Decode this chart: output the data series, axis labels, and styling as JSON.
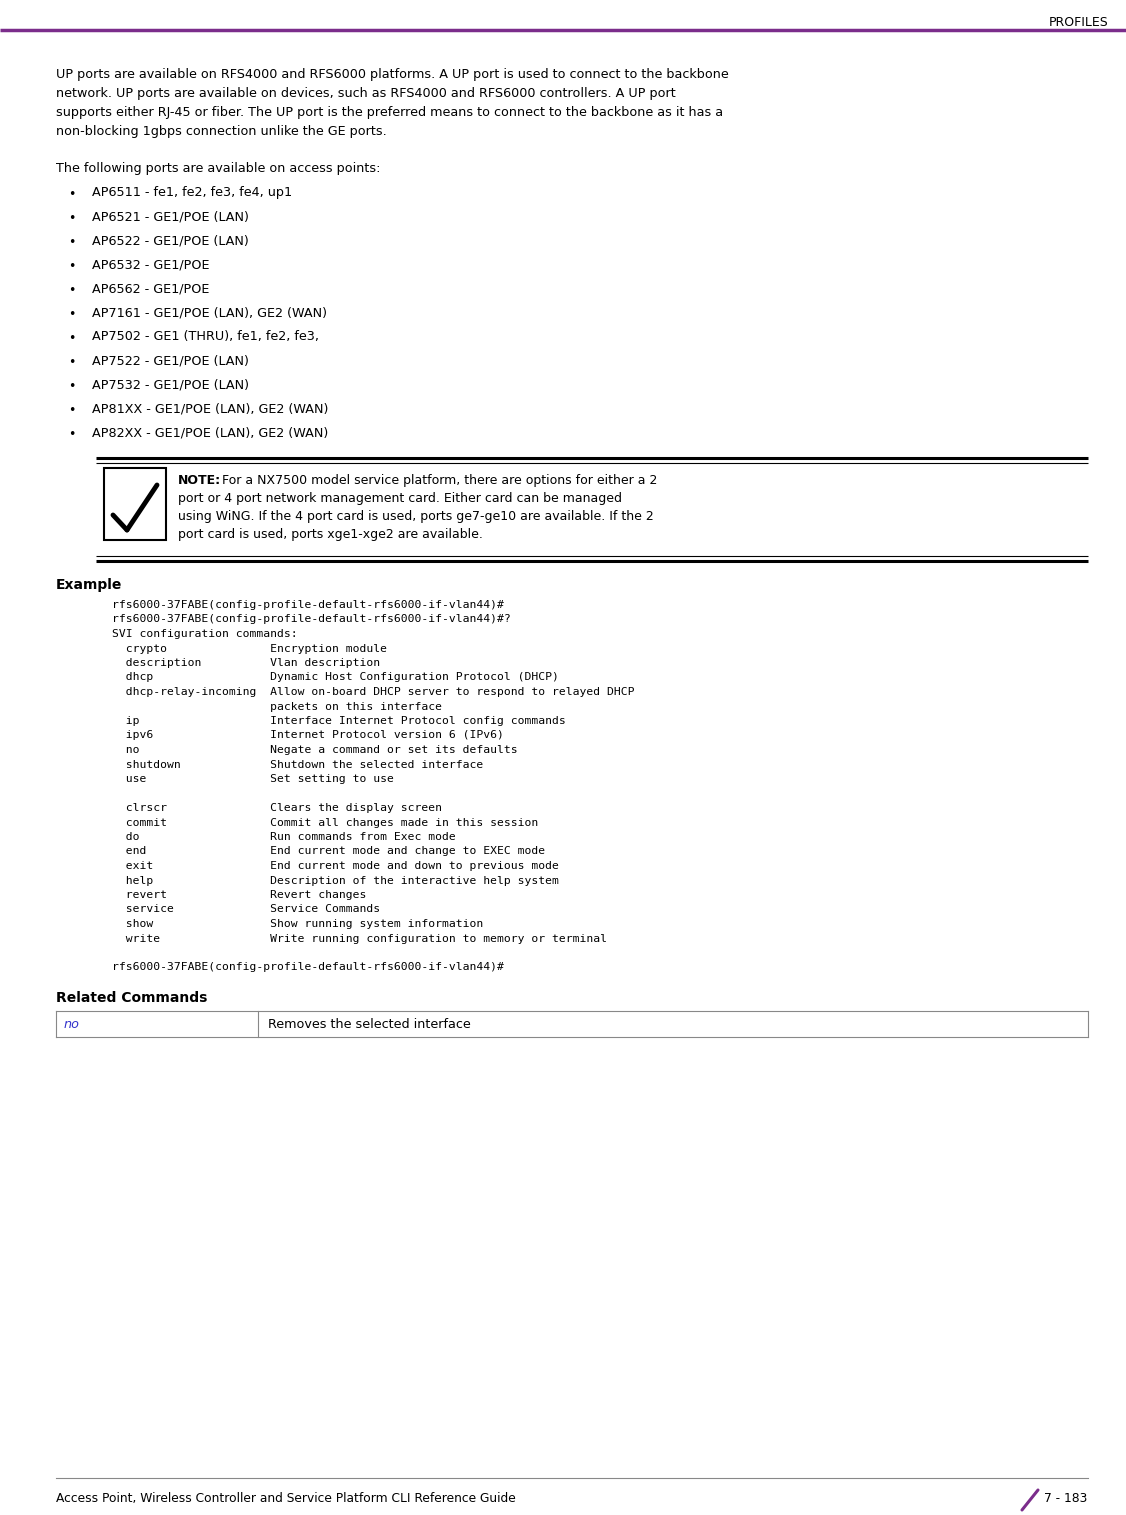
{
  "page_title": "PROFILES",
  "header_line_color": "#7B2D8B",
  "body_text_color": "#000000",
  "bg_color": "#ffffff",
  "intro_lines": [
    "UP ports are available on RFS4000 and RFS6000 platforms. A UP port is used to connect to the backbone",
    "network. UP ports are available on devices, such as RFS4000 and RFS6000 controllers. A UP port",
    "supports either RJ-45 or fiber. The UP port is the preferred means to connect to the backbone as it has a",
    "non-blocking 1gbps connection unlike the GE ports."
  ],
  "bullet_intro": "The following ports are available on access points:",
  "bullets": [
    "AP6511 - fe1, fe2, fe3, fe4, up1",
    "AP6521 - GE1/POE (LAN)",
    "AP6522 - GE1/POE (LAN)",
    "AP6532 - GE1/POE",
    "AP6562 - GE1/POE",
    "AP7161 - GE1/POE (LAN), GE2 (WAN)",
    "AP7502 - GE1 (THRU), fe1, fe2, fe3,",
    "AP7522 - GE1/POE (LAN)",
    "AP7532 - GE1/POE (LAN)",
    "AP81XX - GE1/POE (LAN), GE2 (WAN)",
    "AP82XX - GE1/POE (LAN), GE2 (WAN)"
  ],
  "note_bold": "NOTE:",
  "note_rest": " For a NX7500 model service platform, there are options for either a 2\nport or 4 port network management card. Either card can be managed\nusing WiNG. If the 4 port card is used, ports ge7-ge10 are available. If the 2\nport card is used, ports xge1-xge2 are available.",
  "example_label": "Example",
  "example_code": [
    "rfs6000-37FABE(config-profile-default-rfs6000-if-vlan44)#",
    "rfs6000-37FABE(config-profile-default-rfs6000-if-vlan44)#?",
    "SVI configuration commands:",
    "  crypto               Encryption module",
    "  description          Vlan description",
    "  dhcp                 Dynamic Host Configuration Protocol (DHCP)",
    "  dhcp-relay-incoming  Allow on-board DHCP server to respond to relayed DHCP",
    "                       packets on this interface",
    "  ip                   Interface Internet Protocol config commands",
    "  ipv6                 Internet Protocol version 6 (IPv6)",
    "  no                   Negate a command or set its defaults",
    "  shutdown             Shutdown the selected interface",
    "  use                  Set setting to use",
    "",
    "  clrscr               Clears the display screen",
    "  commit               Commit all changes made in this session",
    "  do                   Run commands from Exec mode",
    "  end                  End current mode and change to EXEC mode",
    "  exit                 End current mode and down to previous mode",
    "  help                 Description of the interactive help system",
    "  revert               Revert changes",
    "  service              Service Commands",
    "  show                 Show running system information",
    "  write                Write running configuration to memory or terminal",
    "",
    "rfs6000-37FABE(config-profile-default-rfs6000-if-vlan44)#"
  ],
  "related_label": "Related Commands",
  "table_cmd": "no",
  "table_desc": "Removes the selected interface",
  "footer_left": "Access Point, Wireless Controller and Service Platform CLI Reference Guide",
  "footer_right": "7 - 183",
  "purple_color": "#7B2D8B"
}
